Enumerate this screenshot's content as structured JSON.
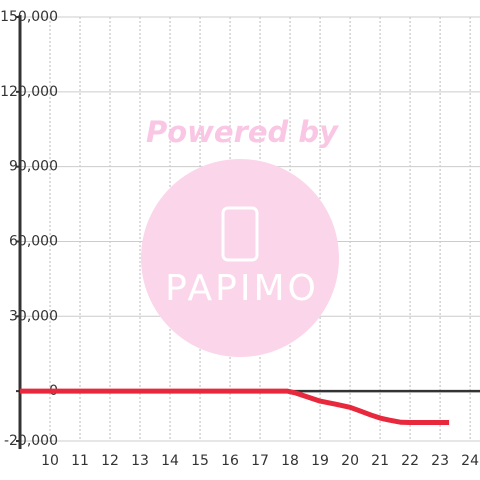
{
  "chart_data": {
    "type": "line",
    "x": [
      9,
      17.9,
      18.2,
      18.5,
      19,
      19.5,
      20,
      20.3,
      20.7,
      21,
      21.3,
      21.7,
      22,
      23.3
    ],
    "series": [
      {
        "color": "#e8283c",
        "values": [
          0,
          0,
          -800,
          -2000,
          -4000,
          -5200,
          -6500,
          -7800,
          -9600,
          -10800,
          -11600,
          -12500,
          -12600,
          -12600
        ]
      }
    ],
    "xlim": [
      9,
      24.33
    ],
    "xticks": [
      10,
      11,
      12,
      13,
      14,
      15,
      16,
      17,
      18,
      19,
      20,
      21,
      22,
      23,
      24
    ],
    "ylim": [
      -20000,
      150000
    ],
    "yticks": [
      {
        "value": -20000,
        "label": "-20,000"
      },
      0,
      {
        "value": 30000,
        "label": "30,000"
      },
      {
        "value": 60000,
        "label": "60,000"
      },
      {
        "value": 90000,
        "label": "90,000"
      },
      {
        "value": 120000,
        "label": "120,000"
      },
      {
        "value": 150000,
        "label": "150,000"
      }
    ],
    "grid": true,
    "watermark": {
      "line1": "Powered by",
      "line2": "PAPIMO"
    }
  }
}
